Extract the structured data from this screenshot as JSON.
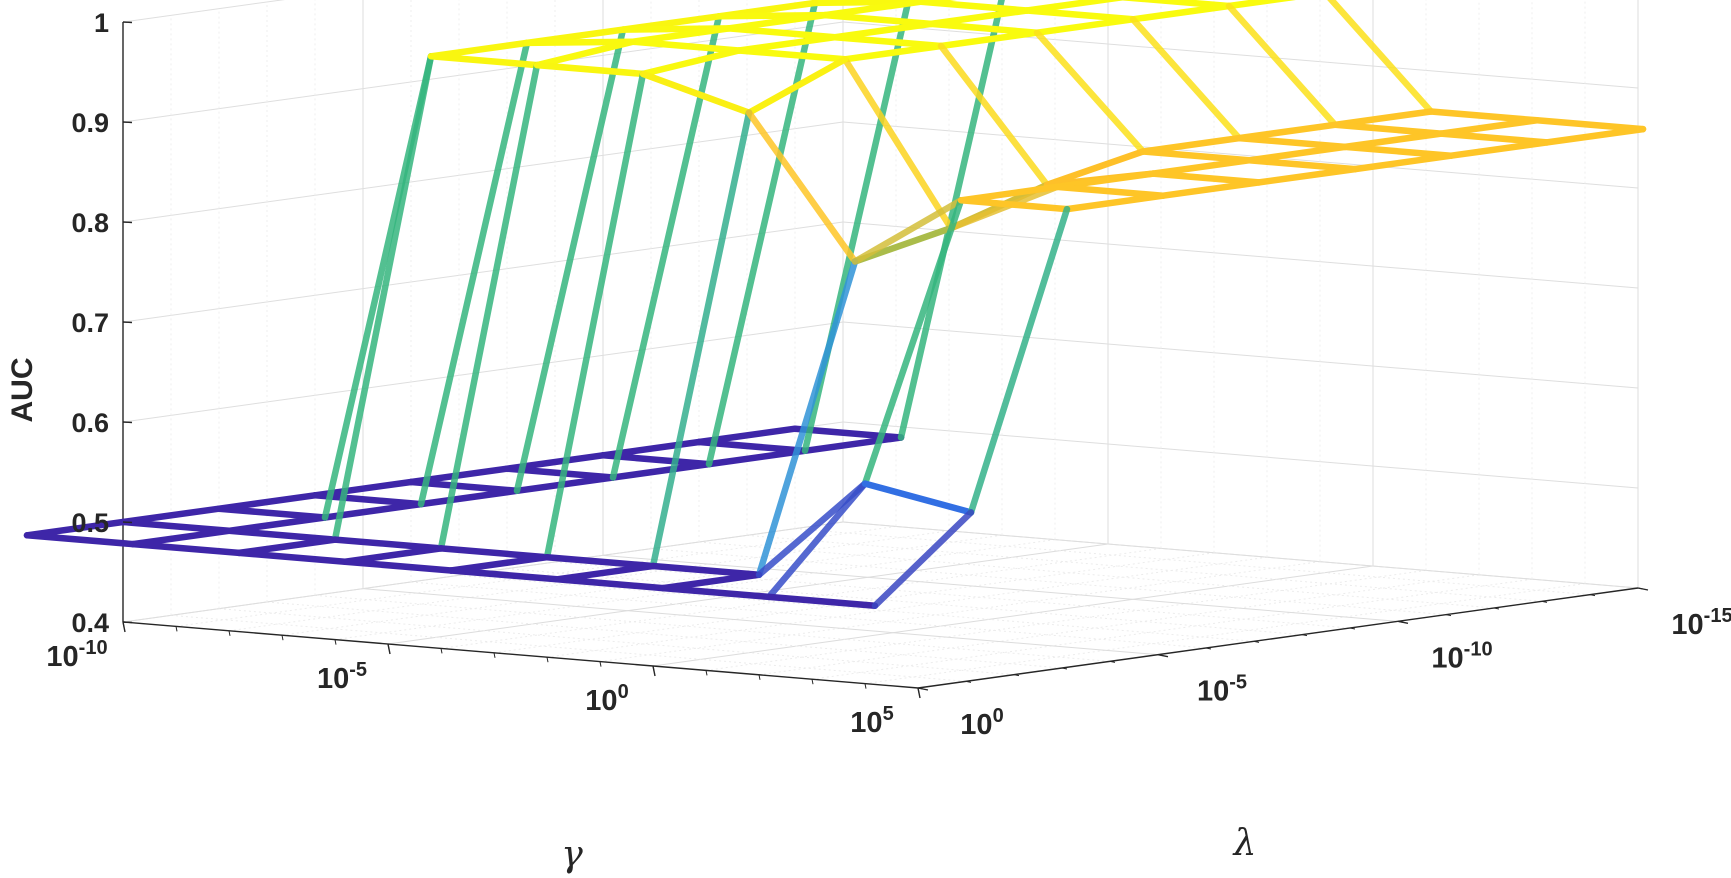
{
  "chart_data": {
    "type": "surface",
    "zlabel": "AUC",
    "xlabel": "γ",
    "ylabel": "λ",
    "z_ticks": [
      "0.4",
      "0.5",
      "0.6",
      "0.7",
      "0.8",
      "0.9",
      "1"
    ],
    "zlim": [
      0.4,
      1.0
    ],
    "gamma_ticks": [
      {
        "base": "10",
        "exp": "-10"
      },
      {
        "base": "10",
        "exp": "-5"
      },
      {
        "base": "10",
        "exp": "0"
      },
      {
        "base": "10",
        "exp": "5"
      }
    ],
    "lambda_ticks": [
      {
        "base": "10",
        "exp": "0"
      },
      {
        "base": "10",
        "exp": "-5"
      },
      {
        "base": "10",
        "exp": "-10"
      },
      {
        "base": "10",
        "exp": "-15"
      }
    ],
    "gamma_exponents": [
      -10,
      -8,
      -6,
      -4,
      -2,
      0,
      2,
      4,
      6
    ],
    "lambda_exponents": [
      2,
      0,
      -2,
      -4,
      -6,
      -8,
      -10,
      -12,
      -14
    ],
    "auc": [
      [
        0.5,
        0.5,
        0.5,
        0.5,
        0.5,
        0.5,
        0.5,
        0.5,
        0.5
      ],
      [
        0.5,
        0.5,
        0.5,
        0.5,
        0.5,
        0.5,
        0.5,
        0.5,
        0.5
      ],
      [
        0.5,
        0.5,
        0.97,
        0.97,
        0.97,
        0.97,
        0.97,
        0.97,
        0.97
      ],
      [
        0.5,
        0.5,
        0.97,
        0.98,
        0.98,
        0.98,
        0.98,
        0.98,
        0.98
      ],
      [
        0.5,
        0.5,
        0.97,
        0.98,
        0.98,
        0.98,
        0.98,
        0.98,
        0.98
      ],
      [
        0.5,
        0.5,
        0.94,
        0.98,
        0.98,
        0.98,
        0.98,
        0.98,
        0.98
      ],
      [
        0.5,
        0.5,
        0.8,
        0.82,
        0.85,
        0.87,
        0.87,
        0.87,
        0.87
      ],
      [
        0.5,
        0.6,
        0.87,
        0.87,
        0.87,
        0.87,
        0.87,
        0.87,
        0.87
      ],
      [
        0.5,
        0.58,
        0.87,
        0.87,
        0.87,
        0.87,
        0.87,
        0.87,
        0.87
      ]
    ],
    "colormap": [
      "#3e26a8",
      "#2e87f7",
      "#35b779",
      "#fec029",
      "#f9fb0e"
    ],
    "grid": true
  }
}
